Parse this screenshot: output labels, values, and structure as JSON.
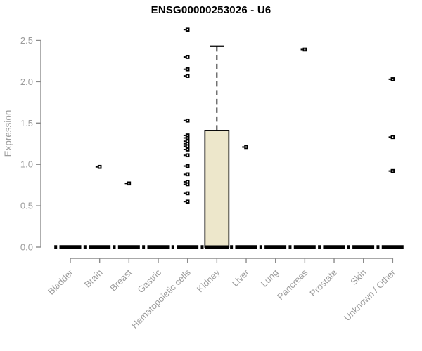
{
  "chart_data": {
    "type": "boxplot",
    "title": "ENSG00000253026 - U6",
    "xlabel": "",
    "ylabel": "Expression",
    "ylim": [
      0,
      2.5
    ],
    "yticks": [
      0.0,
      0.5,
      1.0,
      1.5,
      2.0,
      2.5
    ],
    "grid": false,
    "legend": "none",
    "background": "#ffffff",
    "categories": [
      "Bladder",
      "Brain",
      "Breast",
      "Gastric",
      "Hematopoietic cells",
      "Kidney",
      "Liver",
      "Lung",
      "Pancreas",
      "Prostate",
      "Skin",
      "Unknown / Other"
    ],
    "boxes": [
      {
        "category": "Bladder",
        "low": 0,
        "q1": 0,
        "median": 0,
        "q3": 0,
        "high": 0
      },
      {
        "category": "Brain",
        "low": 0,
        "q1": 0,
        "median": 0,
        "q3": 0,
        "high": 0
      },
      {
        "category": "Breast",
        "low": 0,
        "q1": 0,
        "median": 0,
        "q3": 0,
        "high": 0
      },
      {
        "category": "Gastric",
        "low": 0,
        "q1": 0,
        "median": 0,
        "q3": 0,
        "high": 0
      },
      {
        "category": "Hematopoietic cells",
        "low": 0,
        "q1": 0,
        "median": 0,
        "q3": 0,
        "high": 0
      },
      {
        "category": "Kidney",
        "low": 0,
        "q1": 0,
        "median": 0,
        "q3": 1.41,
        "high": 2.43
      },
      {
        "category": "Liver",
        "low": 0,
        "q1": 0,
        "median": 0,
        "q3": 0,
        "high": 0
      },
      {
        "category": "Lung",
        "low": 0,
        "q1": 0,
        "median": 0,
        "q3": 0,
        "high": 0
      },
      {
        "category": "Pancreas",
        "low": 0,
        "q1": 0,
        "median": 0,
        "q3": 0,
        "high": 0
      },
      {
        "category": "Prostate",
        "low": 0,
        "q1": 0,
        "median": 0,
        "q3": 0,
        "high": 0
      },
      {
        "category": "Skin",
        "low": 0,
        "q1": 0,
        "median": 0,
        "q3": 0,
        "high": 0
      },
      {
        "category": "Unknown / Other",
        "low": 0,
        "q1": 0,
        "median": 0,
        "q3": 0,
        "high": 0
      }
    ],
    "outliers": [
      {
        "category": "Brain",
        "values": [
          0.97
        ]
      },
      {
        "category": "Breast",
        "values": [
          0.77
        ]
      },
      {
        "category": "Hematopoietic cells",
        "values": [
          2.63,
          2.3,
          2.15,
          2.07,
          1.53,
          1.35,
          1.32,
          1.28,
          1.25,
          1.22,
          1.18,
          1.11,
          0.98,
          0.88,
          0.79,
          0.76,
          0.65,
          0.55
        ]
      },
      {
        "category": "Liver",
        "values": [
          1.21
        ]
      },
      {
        "category": "Pancreas",
        "values": [
          2.39
        ]
      },
      {
        "category": "Unknown / Other",
        "values": [
          2.03,
          1.33,
          0.92
        ]
      }
    ],
    "zero_line": {
      "style": "twodash",
      "value": 0.0
    },
    "colors": {
      "box_fill": "#EDE7CB",
      "box_border": "#000000",
      "zero_line": "#000000",
      "outlier": "#000000",
      "axis_line": "#8c8c8c",
      "tick_label": "#9c9c9c",
      "axis_label": "#9c9c9c",
      "title": "#000000"
    }
  }
}
